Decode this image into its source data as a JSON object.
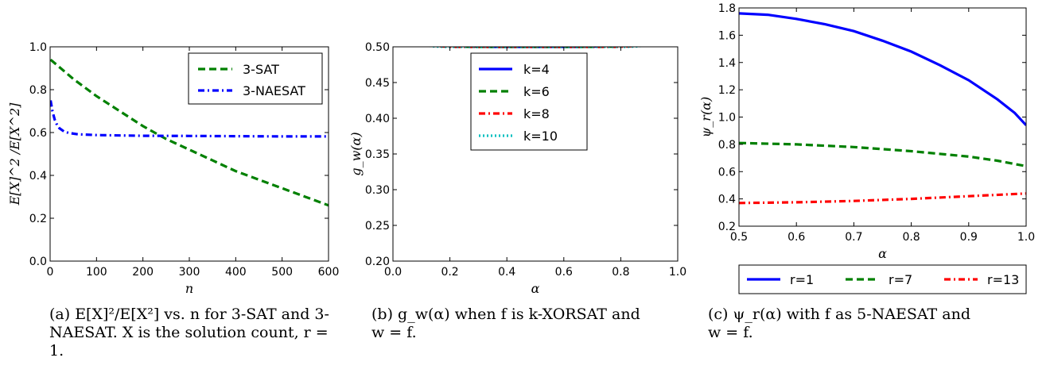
{
  "chart_data": [
    {
      "type": "line",
      "xlabel": "n",
      "ylabel": "E[X]^2 /E[X^2]",
      "xlim": [
        0,
        600
      ],
      "ylim": [
        0.0,
        1.0
      ],
      "xticks": [
        "0",
        "100",
        "200",
        "300",
        "400",
        "500",
        "600"
      ],
      "yticks": [
        "0.0",
        "0.2",
        "0.4",
        "0.6",
        "0.8",
        "1.0"
      ],
      "legend_position": "top-right",
      "series": [
        {
          "name": "3-SAT",
          "color": "#008000",
          "dash": "dashed",
          "x": [
            1,
            50,
            100,
            150,
            200,
            250,
            300,
            350,
            400,
            450,
            500,
            550,
            600
          ],
          "y": [
            0.94,
            0.85,
            0.77,
            0.7,
            0.63,
            0.57,
            0.52,
            0.47,
            0.42,
            0.38,
            0.34,
            0.3,
            0.26
          ]
        },
        {
          "name": "3-NAESAT",
          "color": "#0000ff",
          "dash": "dashdot",
          "x": [
            1,
            5,
            10,
            15,
            20,
            30,
            40,
            60,
            100,
            200,
            300,
            400,
            500,
            600
          ],
          "y": [
            0.75,
            0.7,
            0.66,
            0.635,
            0.62,
            0.605,
            0.598,
            0.592,
            0.588,
            0.585,
            0.584,
            0.583,
            0.582,
            0.582
          ]
        }
      ]
    },
    {
      "type": "line",
      "xlabel": "α",
      "ylabel": "g_w(α)",
      "xlim": [
        0.0,
        1.0
      ],
      "ylim": [
        0.2,
        0.5
      ],
      "xticks": [
        "0.0",
        "0.2",
        "0.4",
        "0.6",
        "0.8",
        "1.0"
      ],
      "yticks": [
        "0.20",
        "0.25",
        "0.30",
        "0.35",
        "0.40",
        "0.45",
        "0.50"
      ],
      "legend_position": "top-center",
      "series": [
        {
          "name": "k=4",
          "color": "#0000ff",
          "dash": "solid",
          "k": 4
        },
        {
          "name": "k=6",
          "color": "#008000",
          "dash": "dashed",
          "k": 6
        },
        {
          "name": "k=8",
          "color": "#ff0000",
          "dash": "dashdot",
          "k": 8
        },
        {
          "name": "k=10",
          "color": "#00bfbf",
          "dash": "dotted",
          "k": 10
        }
      ]
    },
    {
      "type": "line",
      "xlabel": "α",
      "ylabel": "ψ_r(α)",
      "xlim": [
        0.5,
        1.0
      ],
      "ylim": [
        0.2,
        1.8
      ],
      "xticks": [
        "0.5",
        "0.6",
        "0.7",
        "0.8",
        "0.9",
        "1.0"
      ],
      "yticks": [
        "0.2",
        "0.4",
        "0.6",
        "0.8",
        "1.0",
        "1.2",
        "1.4",
        "1.6",
        "1.8"
      ],
      "legend_position": "bottom-outside",
      "series": [
        {
          "name": "r=1",
          "color": "#0000ff",
          "dash": "solid",
          "x": [
            0.5,
            0.55,
            0.6,
            0.65,
            0.7,
            0.75,
            0.8,
            0.85,
            0.9,
            0.95,
            0.98,
            1.0
          ],
          "y": [
            1.76,
            1.75,
            1.72,
            1.68,
            1.63,
            1.56,
            1.48,
            1.38,
            1.27,
            1.13,
            1.03,
            0.94
          ]
        },
        {
          "name": "r=7",
          "color": "#008000",
          "dash": "dashed",
          "x": [
            0.5,
            0.6,
            0.7,
            0.8,
            0.9,
            0.95,
            1.0
          ],
          "y": [
            0.81,
            0.8,
            0.78,
            0.75,
            0.71,
            0.68,
            0.64
          ]
        },
        {
          "name": "r=13",
          "color": "#ff0000",
          "dash": "dashdot",
          "x": [
            0.5,
            0.6,
            0.7,
            0.8,
            0.9,
            1.0
          ],
          "y": [
            0.37,
            0.375,
            0.385,
            0.4,
            0.42,
            0.44
          ]
        }
      ]
    }
  ],
  "captions": [
    {
      "lines": [
        "(a) E[X]²/E[X²] vs. n for 3-SAT and 3-",
        "NAESAT. X is the solution count, r =",
        "1."
      ]
    },
    {
      "lines": [
        "(b) g_w(α)  when  f  is  k-XORSAT  and",
        "w = f."
      ]
    },
    {
      "lines": [
        "(c)  ψ_r(α)  with  f  as  5-NAESAT  and",
        "w = f."
      ]
    }
  ]
}
